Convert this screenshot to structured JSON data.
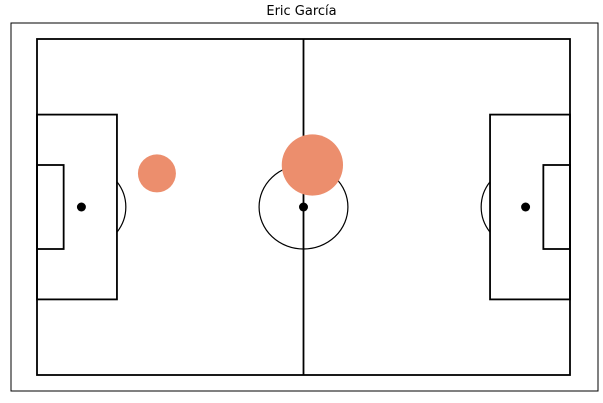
{
  "chart_data": {
    "type": "scatter",
    "title": "Eric García",
    "xlabel": "",
    "ylabel": "",
    "xlim": [
      -5,
      125
    ],
    "ylim": [
      -5,
      85
    ],
    "pitch": {
      "length": 120,
      "width": 80,
      "line_color": "#000000",
      "background": "#ffffff"
    },
    "series": [
      {
        "color": "#EC8E6D",
        "points": [
          {
            "x": 27,
            "y": 32,
            "size": 1
          },
          {
            "x": 62,
            "y": 30,
            "size": 2.6
          }
        ]
      }
    ]
  }
}
